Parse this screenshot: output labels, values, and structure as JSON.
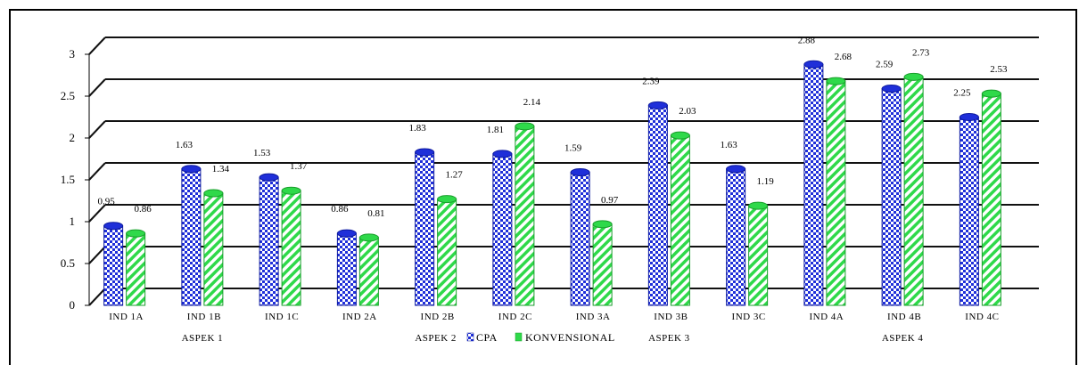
{
  "chart_data": {
    "type": "bar",
    "categories": [
      "IND 1A",
      "IND 1B",
      "IND 1C",
      "IND 2A",
      "IND 2B",
      "IND 2C",
      "IND 3A",
      "IND 3B",
      "IND 3C",
      "IND 4A",
      "IND 4B",
      "IND 4C"
    ],
    "series": [
      {
        "name": "CPA",
        "color": "#1f2fd9",
        "values": [
          0.95,
          1.63,
          1.53,
          0.86,
          1.83,
          1.81,
          1.59,
          2.39,
          1.63,
          2.88,
          2.59,
          2.25
        ]
      },
      {
        "name": "KONVENSIONAL",
        "color": "#2fd94a",
        "values": [
          0.86,
          1.34,
          1.37,
          0.81,
          1.27,
          2.14,
          0.97,
          2.03,
          1.19,
          2.68,
          2.73,
          2.53
        ]
      }
    ],
    "groups": [
      {
        "label": "ASPEK 1",
        "categories": [
          "IND 1A",
          "IND 1B",
          "IND 1C"
        ]
      },
      {
        "label": "ASPEK 2",
        "categories": [
          "IND 2A",
          "IND 2B",
          "IND 2C"
        ]
      },
      {
        "label": "ASPEK 3",
        "categories": [
          "IND 3A",
          "IND 3B",
          "IND 3C"
        ]
      },
      {
        "label": "ASPEK 4",
        "categories": [
          "IND 4A",
          "IND 4B",
          "IND 4C"
        ]
      }
    ],
    "yticks": [
      "0",
      "0.5",
      "1",
      "1.5",
      "2",
      "2.5",
      "3"
    ],
    "ylim": [
      0,
      3
    ],
    "grid": true,
    "legend": "bottom-center",
    "title": "",
    "xlabel": "",
    "ylabel": ""
  }
}
